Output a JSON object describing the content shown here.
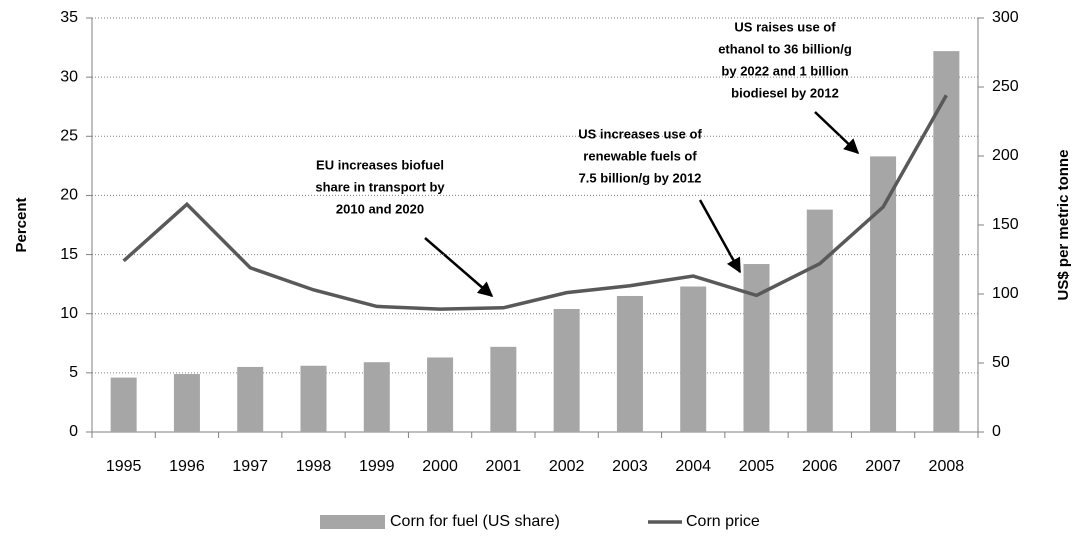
{
  "chart_data": {
    "type": "bar_line",
    "categories": [
      "1995",
      "1996",
      "1997",
      "1998",
      "1999",
      "2000",
      "2001",
      "2002",
      "2003",
      "2004",
      "2005",
      "2006",
      "2007",
      "2008"
    ],
    "series": [
      {
        "name": "Corn for fuel (US share)",
        "color": "#a6a6a6",
        "type": "bar",
        "values": [
          4.6,
          4.9,
          5.5,
          5.6,
          5.9,
          6.3,
          7.2,
          10.4,
          11.5,
          12.3,
          14.2,
          18.8,
          23.3,
          32.2
        ]
      },
      {
        "name": "Corn price",
        "color": "#595959",
        "type": "line",
        "axis": "y2",
        "values": [
          124,
          165,
          119,
          103,
          91,
          89,
          90,
          101,
          106,
          113,
          99,
          122,
          163,
          244
        ]
      }
    ],
    "ylabel": "Percent",
    "y2label": "US$ per metric tonne",
    "ylim": [
      0,
      35
    ],
    "yticks": [
      0,
      5,
      10,
      15,
      20,
      25,
      30,
      35
    ],
    "y2lim": [
      0,
      300
    ],
    "y2ticks": [
      0,
      50,
      100,
      150,
      200,
      250,
      300
    ],
    "grid": true,
    "legend": "bottom",
    "annotations": [
      [
        "EU increases biofuel",
        "share in transport by",
        "2010 and 2020"
      ],
      [
        "US increases use of",
        "renewable fuels of",
        "7.5 billion/g by 2012"
      ],
      [
        "US  raises use of",
        "ethanol to 36 billion/g",
        "by 2022 and 1 billion",
        "biodiesel by 2012"
      ]
    ]
  }
}
